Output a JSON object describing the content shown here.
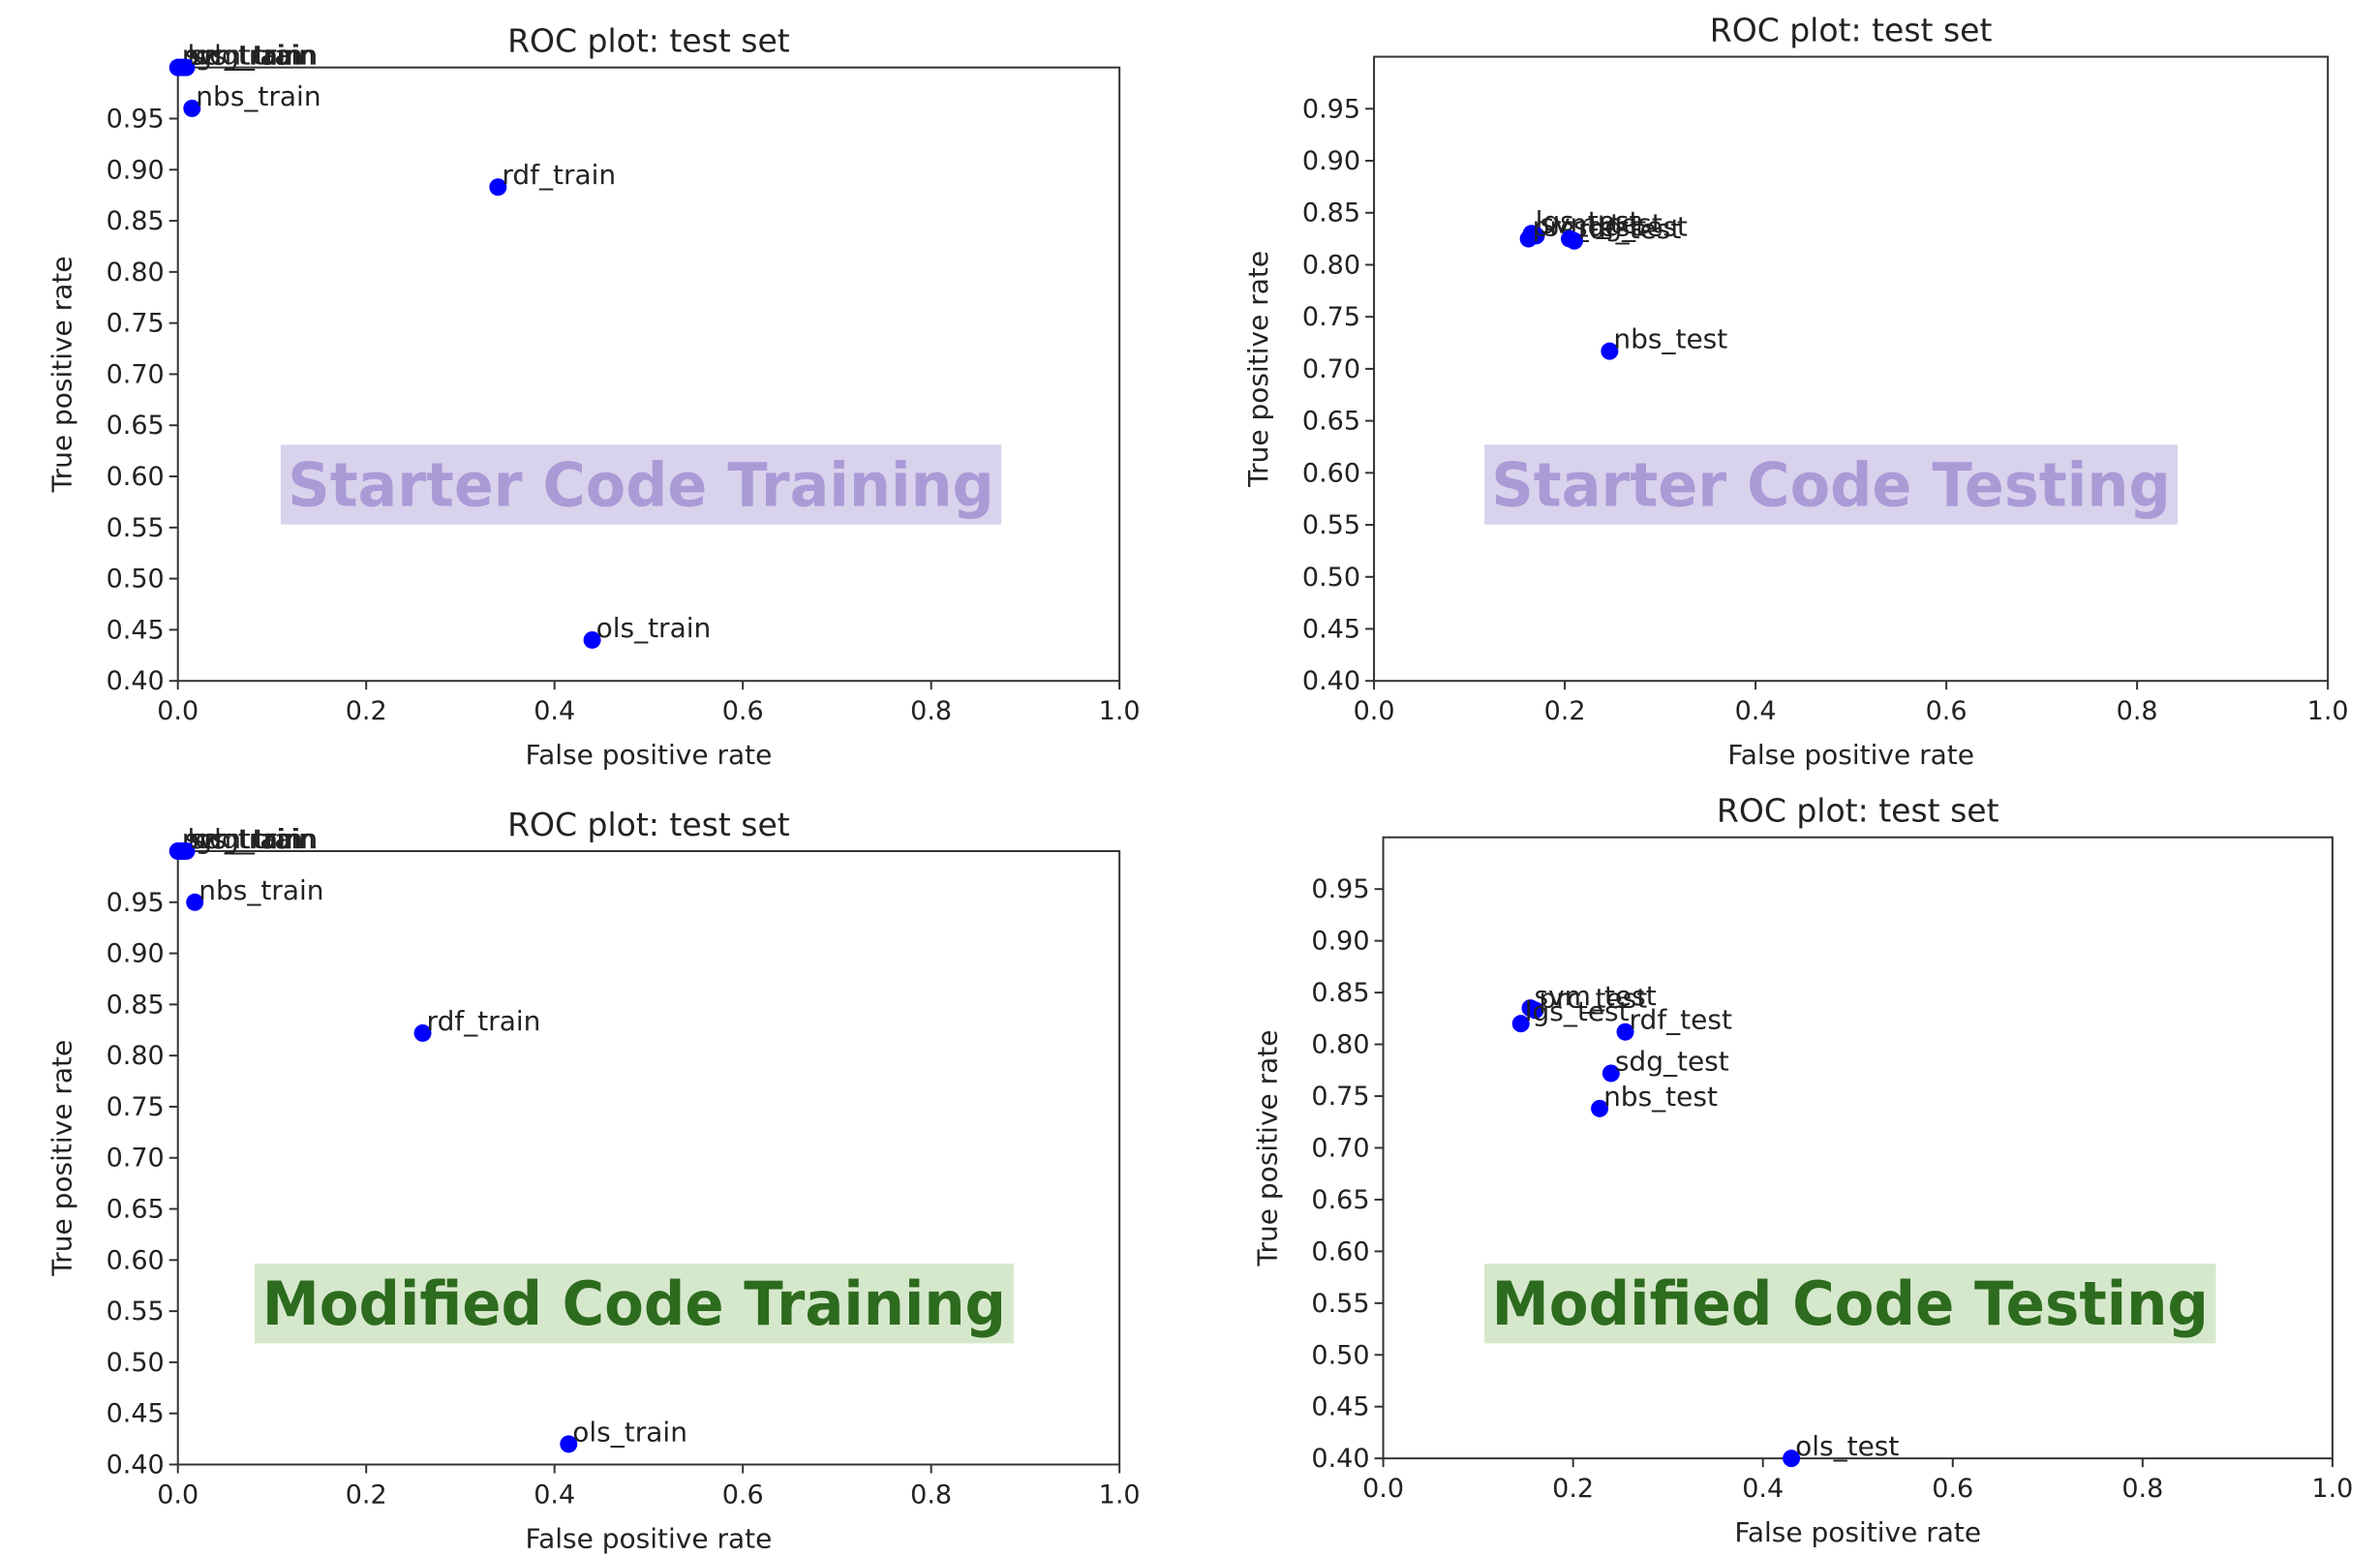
{
  "chart_data": [
    {
      "type": "scatter",
      "title": "ROC plot: test set",
      "xlabel": "False positive rate",
      "ylabel": "True positive rate",
      "xlim": [
        0.0,
        1.0
      ],
      "ylim": [
        0.4,
        1.0
      ],
      "xticks": [
        "0.0",
        "0.2",
        "0.4",
        "0.6",
        "0.8",
        "1.0"
      ],
      "yticks": [
        "0.40",
        "0.45",
        "0.50",
        "0.55",
        "0.60",
        "0.65",
        "0.70",
        "0.75",
        "0.80",
        "0.85",
        "0.90",
        "0.95"
      ],
      "grid": false,
      "point_color": "#0000ff",
      "banner": {
        "text": "Starter Code Training",
        "text_color": "#a99bd6",
        "bg_color": "#d9d2ec"
      },
      "points": [
        {
          "label": "prc_train",
          "x": 0.0,
          "y": 1.0
        },
        {
          "label": "svm_train",
          "x": 0.003,
          "y": 1.0
        },
        {
          "label": "lgs_train",
          "x": 0.006,
          "y": 1.0
        },
        {
          "label": "sdg_train",
          "x": 0.009,
          "y": 1.0
        },
        {
          "label": "nbs_train",
          "x": 0.015,
          "y": 0.96
        },
        {
          "label": "rdf_train",
          "x": 0.34,
          "y": 0.883
        },
        {
          "label": "ols_train",
          "x": 0.44,
          "y": 0.44
        }
      ]
    },
    {
      "type": "scatter",
      "title": "ROC plot: test set",
      "xlabel": "False positive rate",
      "ylabel": "True positive rate",
      "xlim": [
        0.0,
        1.0
      ],
      "ylim": [
        0.4,
        1.0
      ],
      "xticks": [
        "0.0",
        "0.2",
        "0.4",
        "0.6",
        "0.8",
        "1.0"
      ],
      "yticks": [
        "0.40",
        "0.45",
        "0.50",
        "0.55",
        "0.60",
        "0.65",
        "0.70",
        "0.75",
        "0.80",
        "0.85",
        "0.90",
        "0.95"
      ],
      "grid": false,
      "point_color": "#0000ff",
      "banner": {
        "text": "Starter Code Testing",
        "text_color": "#a99bd6",
        "bg_color": "#d9d2ec"
      },
      "points": [
        {
          "label": "lgs_test",
          "x": 0.165,
          "y": 0.83
        },
        {
          "label": "svm_test",
          "x": 0.17,
          "y": 0.828
        },
        {
          "label": "prc_test",
          "x": 0.162,
          "y": 0.825
        },
        {
          "label": "sdg_test",
          "x": 0.205,
          "y": 0.825
        },
        {
          "label": "rdf_test",
          "x": 0.21,
          "y": 0.823
        },
        {
          "label": "nbs_test",
          "x": 0.247,
          "y": 0.717
        }
      ]
    },
    {
      "type": "scatter",
      "title": "ROC plot: test set",
      "xlabel": "False positive rate",
      "ylabel": "True positive rate",
      "xlim": [
        0.0,
        1.0
      ],
      "ylim": [
        0.4,
        1.0
      ],
      "xticks": [
        "0.0",
        "0.2",
        "0.4",
        "0.6",
        "0.8",
        "1.0"
      ],
      "yticks": [
        "0.40",
        "0.45",
        "0.50",
        "0.55",
        "0.60",
        "0.65",
        "0.70",
        "0.75",
        "0.80",
        "0.85",
        "0.90",
        "0.95"
      ],
      "grid": false,
      "point_color": "#0000ff",
      "banner": {
        "text": "Modified Code Training",
        "text_color": "#2d6b1e",
        "bg_color": "#d6e8cc"
      },
      "points": [
        {
          "label": "prc_train",
          "x": 0.0,
          "y": 1.0
        },
        {
          "label": "svm_train",
          "x": 0.003,
          "y": 1.0
        },
        {
          "label": "lgs_train",
          "x": 0.006,
          "y": 1.0
        },
        {
          "label": "sdg_train",
          "x": 0.009,
          "y": 1.0
        },
        {
          "label": "nbs_train",
          "x": 0.018,
          "y": 0.95
        },
        {
          "label": "rdf_train",
          "x": 0.26,
          "y": 0.822
        },
        {
          "label": "ols_train",
          "x": 0.415,
          "y": 0.42
        }
      ]
    },
    {
      "type": "scatter",
      "title": "ROC plot: test set",
      "xlabel": "False positive rate",
      "ylabel": "True positive rate",
      "xlim": [
        0.0,
        1.0
      ],
      "ylim": [
        0.4,
        1.0
      ],
      "xticks": [
        "0.0",
        "0.2",
        "0.4",
        "0.6",
        "0.8",
        "1.0"
      ],
      "yticks": [
        "0.40",
        "0.45",
        "0.50",
        "0.55",
        "0.60",
        "0.65",
        "0.70",
        "0.75",
        "0.80",
        "0.85",
        "0.90",
        "0.95"
      ],
      "grid": false,
      "point_color": "#0000ff",
      "banner": {
        "text": "Modified Code Testing",
        "text_color": "#2d6b1e",
        "bg_color": "#d6e8cc"
      },
      "points": [
        {
          "label": "svm_test",
          "x": 0.155,
          "y": 0.835
        },
        {
          "label": "prc_test",
          "x": 0.16,
          "y": 0.833
        },
        {
          "label": "lgs_test",
          "x": 0.145,
          "y": 0.82
        },
        {
          "label": "rdf_test",
          "x": 0.255,
          "y": 0.812
        },
        {
          "label": "sdg_test",
          "x": 0.24,
          "y": 0.772
        },
        {
          "label": "nbs_test",
          "x": 0.228,
          "y": 0.738
        },
        {
          "label": "ols_test",
          "x": 0.43,
          "y": 0.4
        }
      ]
    }
  ]
}
